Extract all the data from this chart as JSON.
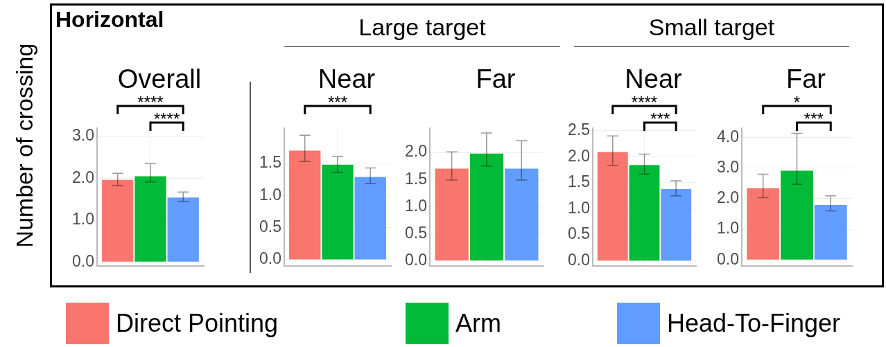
{
  "chart_data": [
    {
      "type": "bar",
      "title": "Overall",
      "subtitle": "Horizontal",
      "ylabel": "Number of crossing",
      "categories": [
        null
      ],
      "series": [
        {
          "name": "Direct Pointing",
          "color": "#f8766d",
          "values": [
            1.96
          ],
          "errors": [
            [
              1.83,
              2.12
            ]
          ]
        },
        {
          "name": "Arm",
          "color": "#00ba38",
          "values": [
            2.05
          ],
          "errors": [
            [
              1.91,
              2.35
            ]
          ]
        },
        {
          "name": "Head-To-Finger",
          "color": "#619cff",
          "values": [
            1.54
          ],
          "errors": [
            [
              1.45,
              1.67
            ]
          ]
        }
      ],
      "ylim": [
        -0.1,
        3.2
      ],
      "yticks": [
        {
          "value": 0,
          "label": "0.0"
        },
        {
          "value": 1,
          "label": "1.0"
        },
        {
          "value": 2,
          "label": "2.0"
        },
        {
          "value": 3,
          "label": "3.0"
        }
      ],
      "annotations": [
        "****",
        "****"
      ],
      "grid": true,
      "legend": "bottom"
    },
    {
      "type": "bar",
      "title": "Near",
      "subtitle": "Large target",
      "categories": [
        null
      ],
      "series": [
        {
          "color": "#f8766d",
          "values": [
            1.7
          ],
          "errors": [
            [
              1.53,
              1.94
            ]
          ]
        },
        {
          "color": "#00ba38",
          "values": [
            1.48
          ],
          "errors": [
            [
              1.36,
              1.61
            ]
          ]
        },
        {
          "color": "#619cff",
          "values": [
            1.29
          ],
          "errors": [
            [
              1.19,
              1.43
            ]
          ]
        }
      ],
      "ylim": [
        -0.1,
        2.05
      ],
      "yticks": [
        {
          "value": 0,
          "label": "0.0"
        },
        0.5,
        {
          "value": 1,
          "label": "1.0"
        },
        1.5
      ],
      "annotations": [
        "***"
      ],
      "grid": true
    },
    {
      "type": "bar",
      "title": "Far",
      "categories": [
        null
      ],
      "series": [
        {
          "color": "#f8766d",
          "values": [
            1.7
          ],
          "errors": [
            [
              1.49,
              2.01
            ]
          ]
        },
        {
          "color": "#00ba38",
          "values": [
            1.98
          ],
          "errors": [
            [
              1.75,
              2.36
            ]
          ]
        },
        {
          "color": "#619cff",
          "values": [
            1.7
          ],
          "errors": [
            [
              1.49,
              2.22
            ]
          ]
        }
      ],
      "ylim": [
        -0.1,
        2.45
      ],
      "yticks": [
        {
          "value": 0,
          "label": "0.0"
        },
        0.5,
        {
          "value": 1,
          "label": "1.0"
        },
        1.5,
        {
          "value": 2,
          "label": "2.0"
        }
      ],
      "grid": true
    },
    {
      "type": "bar",
      "title": "Near",
      "subtitle": "Small target",
      "categories": [
        null
      ],
      "series": [
        {
          "color": "#f8766d",
          "values": [
            2.09
          ],
          "errors": [
            [
              1.83,
              2.4
            ]
          ]
        },
        {
          "color": "#00ba38",
          "values": [
            1.84
          ],
          "errors": [
            [
              1.67,
              2.05
            ]
          ]
        },
        {
          "color": "#619cff",
          "values": [
            1.38
          ],
          "errors": [
            [
              1.25,
              1.54
            ]
          ]
        }
      ],
      "ylim": [
        -0.1,
        2.55
      ],
      "yticks": [
        {
          "value": 0,
          "label": "0.0"
        },
        0.5,
        {
          "value": 1,
          "label": "1.0"
        },
        1.5,
        {
          "value": 2,
          "label": "2.0"
        },
        2.5
      ],
      "annotations": [
        "****",
        "***"
      ],
      "grid": true
    },
    {
      "type": "bar",
      "title": "Far",
      "categories": [
        null
      ],
      "series": [
        {
          "color": "#f8766d",
          "values": [
            2.34
          ],
          "errors": [
            [
              2.03,
              2.8
            ]
          ]
        },
        {
          "color": "#00ba38",
          "values": [
            2.91
          ],
          "errors": [
            [
              2.47,
              4.13
            ]
          ]
        },
        {
          "color": "#619cff",
          "values": [
            1.79
          ],
          "errors": [
            [
              1.6,
              2.09
            ]
          ]
        }
      ],
      "ylim": [
        -0.2,
        4.3
      ],
      "yticks": [
        {
          "value": 0,
          "label": "0.0"
        },
        {
          "value": 1,
          "label": "1.0"
        },
        {
          "value": 2,
          "label": "2.0"
        },
        {
          "value": 3,
          "label": "3.0"
        },
        {
          "value": 4,
          "label": "4.0"
        }
      ],
      "annotations": [
        "*",
        "***"
      ],
      "grid": true
    }
  ]
}
